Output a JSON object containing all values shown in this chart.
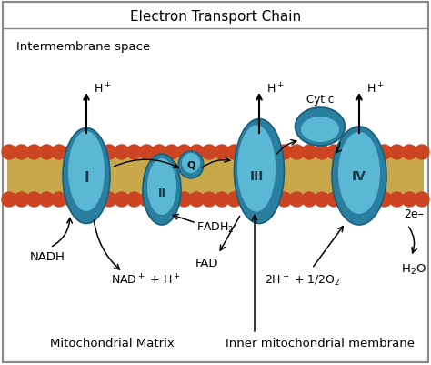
{
  "title": "Electron Transport Chain",
  "bg_color": "#ffffff",
  "border_color": "#888888",
  "membrane_color": "#c8a84b",
  "bead_color": "#cc4422",
  "protein_color": "#5bb8d4",
  "protein_dark": "#2a7fa0",
  "protein_outline": "#1a5f7a",
  "labels": {
    "intermembrane": "Intermembrane space",
    "matrix": "Mitochondrial Matrix",
    "inner_mem": "Inner mitochondrial membrane",
    "nadh": "NADH",
    "nad": "NAD$^+$ + H$^+$",
    "fadh2": "FADH$_2$",
    "fad": "FAD",
    "cyt_c": "Cyt c",
    "react": "2H$^+$ + 1/2O$_2$",
    "water": "H$_2$O",
    "two_e": "2e–",
    "hplus": "H$^+$"
  }
}
